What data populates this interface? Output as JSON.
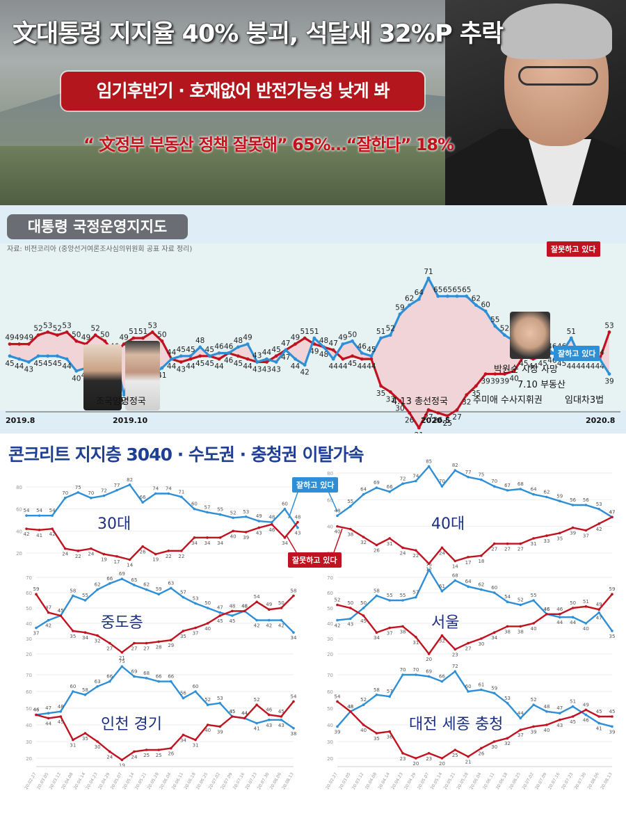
{
  "header": {
    "headline": "文대통령 지지율 40% 붕괴, 석달새 32%P 추락",
    "subtitle": "임기후반기 · 호재없어 반전가능성 낮게 봐",
    "quote": "“ 文정부 부동산 정책 잘못해”  65%…“잘한다”  18%"
  },
  "panel1": {
    "title": "대통령 국정운영지지도",
    "source": "자료: 비전코리아 (중앙선거여론조사심의위원회 공표 자료 정리)",
    "annotations": {
      "cho": "조국임명정국",
      "election": "4.13 총선정국",
      "park": "박원순 시장 사망",
      "realestate": "7.10 부동산",
      "choo": "추미애 수사지휘권",
      "lease": "임대차3법"
    },
    "tags": {
      "negative": "잘못하고 있다",
      "positive": "잘하고 있다"
    },
    "xlabels": [
      "2019.8",
      "2019.10",
      "2020.5",
      "2020.8"
    ]
  },
  "panel2": {
    "title": "콘크리트 지지층 3040 · 수도권 · 충청권 이탈가속",
    "tags": {
      "positive": "잘하고 있다",
      "negative": "잘못하고 있다"
    }
  },
  "colors": {
    "positive": "#2e8fd6",
    "negative": "#c1121f",
    "headline_box": "#b3161c",
    "panel2_title": "#1f3f95"
  },
  "chart_data": [
    {
      "type": "line",
      "title": "대통령 국정운영지지도",
      "series": [
        {
          "name": "잘하고 있다",
          "values": [
            45,
            44,
            43,
            45,
            45,
            45,
            44,
            40,
            41,
            38,
            41,
            46,
            32,
            42,
            43,
            39,
            41,
            44,
            45,
            45,
            48,
            45,
            46,
            46,
            48,
            49,
            43,
            44,
            43,
            47,
            44,
            42,
            51,
            48,
            44,
            49,
            50,
            46,
            45,
            51,
            52,
            59,
            62,
            64,
            71,
            65,
            65,
            65,
            65,
            62,
            60,
            55,
            52,
            50,
            47,
            53,
            50,
            46,
            46,
            51,
            44,
            44,
            44,
            39
          ]
        },
        {
          "name": "잘못하고 있다",
          "values": [
            49,
            49,
            49,
            52,
            53,
            52,
            53,
            50,
            49,
            52,
            50,
            46,
            49,
            51,
            51,
            53,
            50,
            44,
            43,
            44,
            45,
            45,
            44,
            46,
            45,
            44,
            43,
            43,
            45,
            47,
            49,
            51,
            49,
            48,
            47,
            44,
            45,
            44,
            44,
            35,
            33,
            30,
            26,
            21,
            27,
            26,
            25,
            27,
            32,
            35,
            39,
            39,
            39,
            40,
            45,
            44,
            45,
            46,
            45,
            44,
            44,
            44,
            44,
            53
          ]
        }
      ]
    },
    {
      "type": "line",
      "title": "30대",
      "series": [
        {
          "name": "잘하고 있다",
          "values": [
            54,
            54,
            54,
            70,
            75,
            70,
            72,
            77,
            82,
            66,
            74,
            74,
            71,
            60,
            57,
            55,
            52,
            53,
            49,
            48,
            60,
            43
          ]
        },
        {
          "name": "잘못하고 있다",
          "values": [
            42,
            41,
            42,
            24,
            22,
            24,
            19,
            17,
            14,
            26,
            19,
            22,
            22,
            34,
            34,
            34,
            40,
            39,
            43,
            46,
            34,
            48
          ]
        }
      ]
    },
    {
      "type": "line",
      "title": "40대",
      "series": [
        {
          "name": "잘하고 있다",
          "values": [
            48,
            55,
            64,
            69,
            66,
            72,
            74,
            85,
            70,
            82,
            77,
            75,
            70,
            67,
            68,
            64,
            62,
            59,
            56,
            56,
            53,
            47
          ]
        },
        {
          "name": "잘못하고 있다",
          "values": [
            40,
            38,
            32,
            26,
            31,
            24,
            22,
            12,
            24,
            14,
            17,
            18,
            27,
            27,
            27,
            31,
            33,
            35,
            39,
            37,
            42,
            47
          ]
        }
      ]
    },
    {
      "type": "line",
      "title": "중도층",
      "series": [
        {
          "name": "잘하고 있다",
          "values": [
            37,
            42,
            45,
            58,
            55,
            62,
            66,
            69,
            65,
            62,
            59,
            63,
            57,
            53,
            50,
            47,
            45,
            48,
            42,
            42,
            42,
            34
          ]
        },
        {
          "name": "잘못하고 있다",
          "values": [
            59,
            47,
            45,
            35,
            34,
            32,
            27,
            21,
            27,
            27,
            28,
            29,
            35,
            37,
            40,
            45,
            48,
            48,
            54,
            49,
            50,
            58
          ]
        }
      ]
    },
    {
      "type": "line",
      "title": "서울",
      "series": [
        {
          "name": "잘하고 있다",
          "values": [
            42,
            43,
            50,
            58,
            55,
            55,
            57,
            75,
            61,
            68,
            64,
            62,
            60,
            54,
            52,
            55,
            46,
            44,
            44,
            40,
            47,
            35
          ]
        },
        {
          "name": "잘못하고 있다",
          "values": [
            52,
            50,
            45,
            34,
            37,
            38,
            31,
            20,
            32,
            23,
            27,
            30,
            34,
            38,
            38,
            40,
            46,
            46,
            50,
            51,
            49,
            59
          ]
        }
      ]
    },
    {
      "type": "line",
      "title": "인천 경기",
      "series": [
        {
          "name": "잘하고 있다",
          "values": [
            46,
            47,
            48,
            60,
            58,
            63,
            66,
            75,
            69,
            68,
            66,
            66,
            56,
            60,
            52,
            53,
            45,
            44,
            41,
            43,
            43,
            38
          ]
        },
        {
          "name": "잘못하고 있다",
          "values": [
            46,
            44,
            45,
            31,
            35,
            30,
            24,
            19,
            24,
            25,
            25,
            26,
            34,
            31,
            40,
            39,
            45,
            44,
            52,
            46,
            45,
            54
          ]
        }
      ]
    },
    {
      "type": "line",
      "title": "대전 세종 충청",
      "series": [
        {
          "name": "잘하고 있다",
          "values": [
            39,
            48,
            52,
            58,
            57,
            70,
            70,
            69,
            66,
            72,
            60,
            61,
            59,
            53,
            44,
            52,
            48,
            47,
            51,
            46,
            41,
            39
          ]
        },
        {
          "name": "잘못하고 있다",
          "values": [
            54,
            48,
            40,
            35,
            36,
            23,
            20,
            23,
            20,
            25,
            21,
            26,
            30,
            32,
            37,
            39,
            40,
            43,
            45,
            49,
            45,
            45
          ]
        }
      ]
    }
  ],
  "small_x_dates": [
    "20.02.27",
    "20.03.05",
    "20.03.12",
    "20.04.08",
    "20.04.14",
    "20.04.23",
    "20.04.29",
    "20.05.07",
    "20.05.14",
    "20.05.21",
    "20.05.28",
    "20.06.04",
    "20.06.11",
    "20.06.18",
    "20.06.25",
    "20.07.02",
    "20.07.09",
    "20.07.16",
    "20.07.23",
    "20.07.30",
    "20.08.06",
    "20.08.13"
  ]
}
